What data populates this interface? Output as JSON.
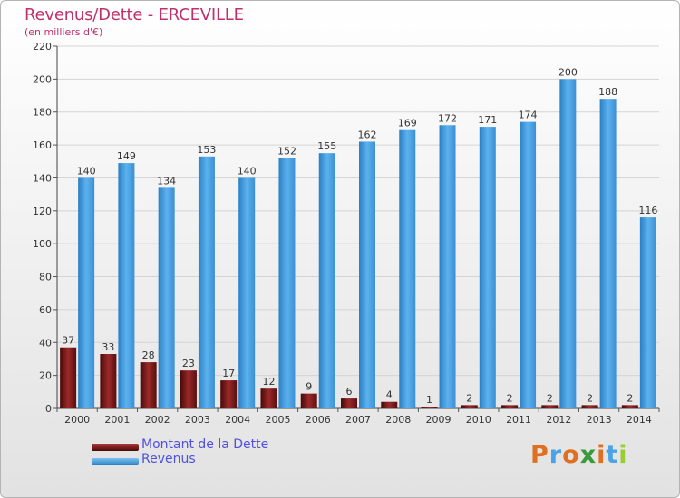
{
  "header": {
    "title": "Revenus/Dette - ERCEVILLE",
    "subtitle": "(en milliers d'€)"
  },
  "legend": {
    "debt_label": "Montant de la Dette",
    "revenue_label": "Revenus"
  },
  "logo": {
    "text": "Proxiti"
  },
  "colors": {
    "debt": "#7a1416",
    "revenue": "#4aa3e6",
    "title": "#c0306a",
    "legend_text": "#5050e0"
  },
  "chart_data": {
    "type": "bar",
    "title": "Revenus/Dette - ERCEVILLE",
    "subtitle": "(en milliers d'€)",
    "categories": [
      "2000",
      "2001",
      "2002",
      "2003",
      "2004",
      "2005",
      "2006",
      "2007",
      "2008",
      "2009",
      "2010",
      "2011",
      "2012",
      "2013",
      "2014"
    ],
    "series": [
      {
        "name": "Montant de la Dette",
        "values": [
          37,
          33,
          28,
          23,
          17,
          12,
          9,
          6,
          4,
          1,
          2,
          2,
          2,
          2,
          2
        ]
      },
      {
        "name": "Revenus",
        "values": [
          140,
          149,
          134,
          153,
          140,
          152,
          155,
          162,
          169,
          172,
          171,
          174,
          200,
          188,
          116
        ]
      }
    ],
    "ylim": [
      0,
      220
    ],
    "yticks": [
      0,
      20,
      40,
      60,
      80,
      100,
      120,
      140,
      160,
      180,
      200,
      220
    ],
    "grid": true,
    "legend_position": "bottom-left"
  }
}
